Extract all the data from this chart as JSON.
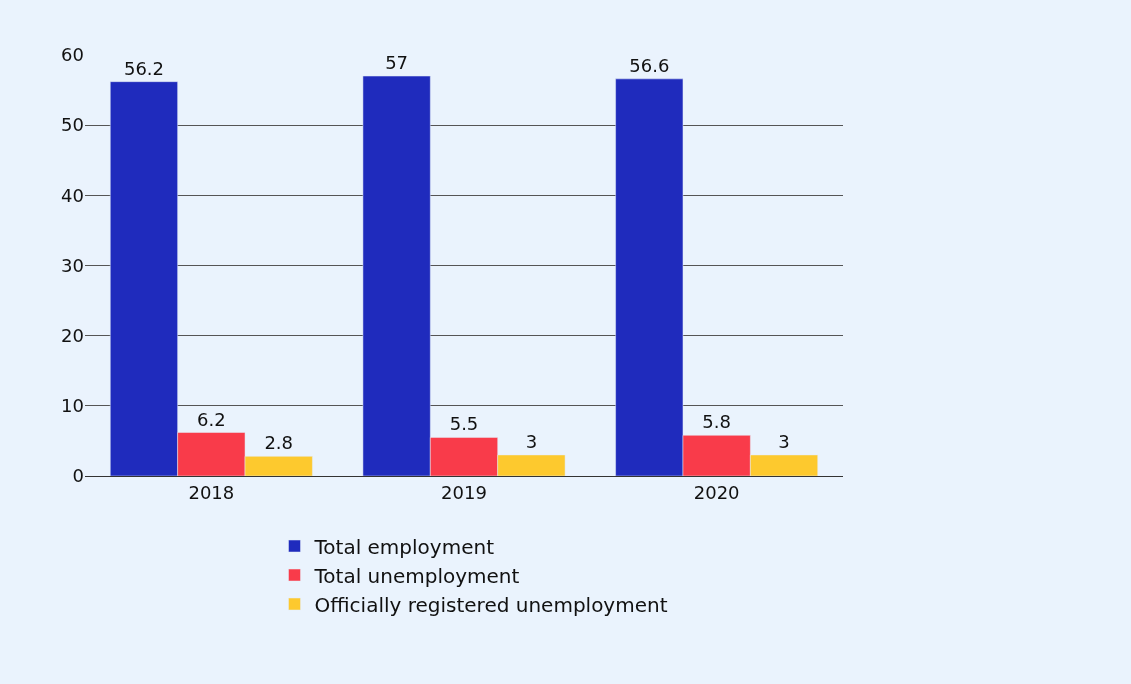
{
  "chart_data": {
    "type": "bar",
    "categories": [
      "2018",
      "2019",
      "2020"
    ],
    "series": [
      {
        "name": "Total employment",
        "color": "#1f2bbd",
        "values": [
          56.2,
          57,
          56.6
        ]
      },
      {
        "name": "Total unemployment",
        "color": "#f93b4a",
        "values": [
          6.2,
          5.5,
          5.8
        ]
      },
      {
        "name": "Officially registered unemployment",
        "color": "#fdc92e",
        "values": [
          2.8,
          3,
          3
        ]
      }
    ],
    "ylim": [
      0,
      60
    ],
    "yticks": [
      0,
      10,
      20,
      30,
      40,
      50,
      60
    ],
    "grid": "y",
    "legend": "bottom",
    "data_labels": true
  }
}
